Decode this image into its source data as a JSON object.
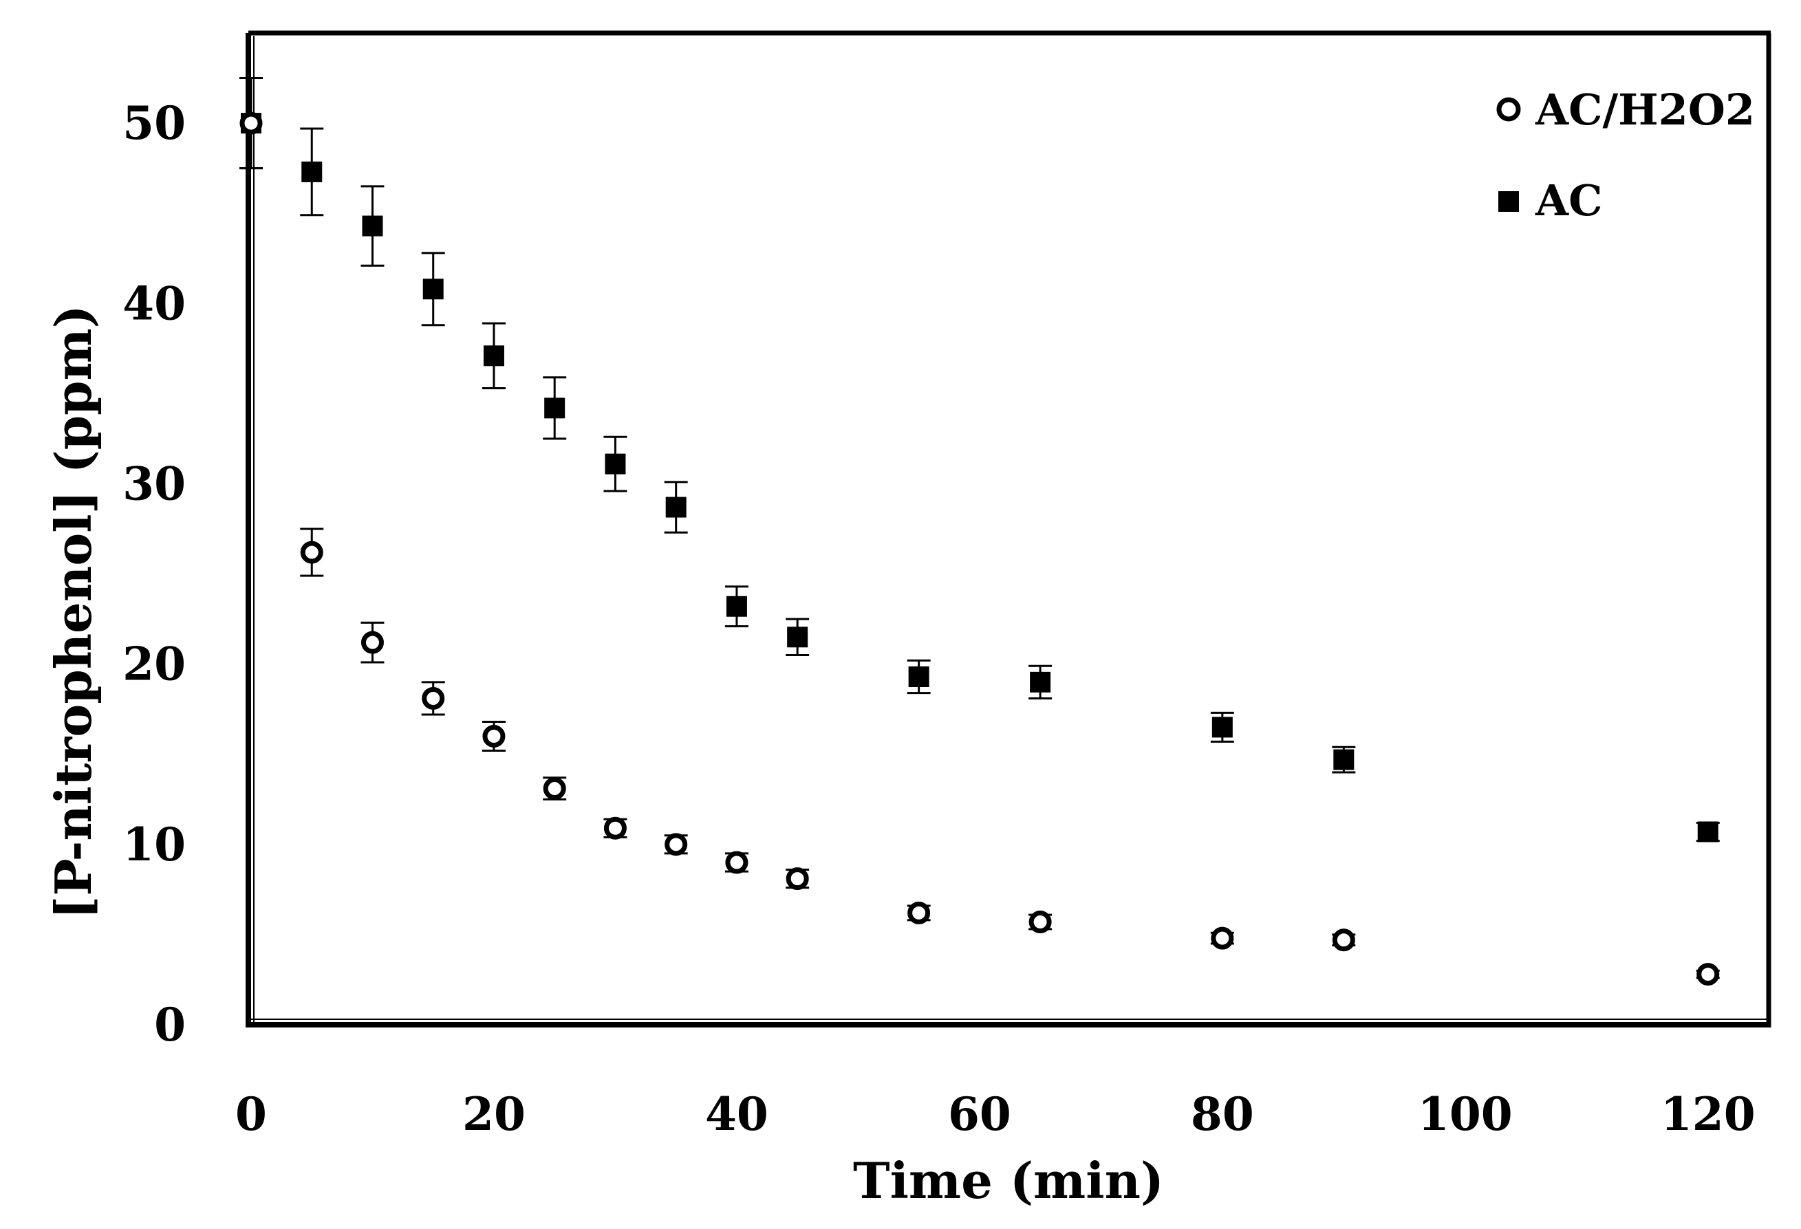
{
  "chart_data": {
    "type": "scatter",
    "title": "",
    "xlabel": "Time (min)",
    "ylabel": "[P-nitrophenol] (ppm)",
    "xlim": [
      0,
      125
    ],
    "ylim": [
      0,
      55
    ],
    "xticks": [
      0,
      20,
      40,
      60,
      80,
      100,
      120
    ],
    "yticks": [
      0,
      10,
      20,
      30,
      40,
      50
    ],
    "legend_position": "top-right",
    "series": [
      {
        "name": "AC/H2O2",
        "marker": "circle-open",
        "color": "#000000",
        "x": [
          0,
          5,
          10,
          15,
          20,
          25,
          30,
          35,
          40,
          45,
          55,
          65,
          80,
          90,
          120
        ],
        "y": [
          50,
          26.2,
          21.2,
          18.1,
          16.0,
          13.1,
          10.9,
          10.0,
          9.0,
          8.1,
          6.2,
          5.7,
          4.8,
          4.7,
          2.8
        ],
        "err": [
          2.5,
          1.3,
          1.1,
          0.9,
          0.8,
          0.6,
          0.5,
          0.5,
          0.5,
          0.5,
          0.4,
          0.4,
          0.3,
          0.3,
          0.2
        ]
      },
      {
        "name": "AC",
        "marker": "square-filled",
        "color": "#000000",
        "x": [
          0,
          5,
          10,
          15,
          20,
          25,
          30,
          35,
          40,
          45,
          55,
          65,
          80,
          90,
          120
        ],
        "y": [
          50,
          47.3,
          44.3,
          40.8,
          37.1,
          34.2,
          31.1,
          28.7,
          23.2,
          21.5,
          19.3,
          19.0,
          16.5,
          14.7,
          10.7
        ],
        "err": [
          2.5,
          2.4,
          2.2,
          2.0,
          1.8,
          1.7,
          1.5,
          1.4,
          1.1,
          1.0,
          0.9,
          0.9,
          0.8,
          0.7,
          0.5
        ]
      }
    ]
  }
}
